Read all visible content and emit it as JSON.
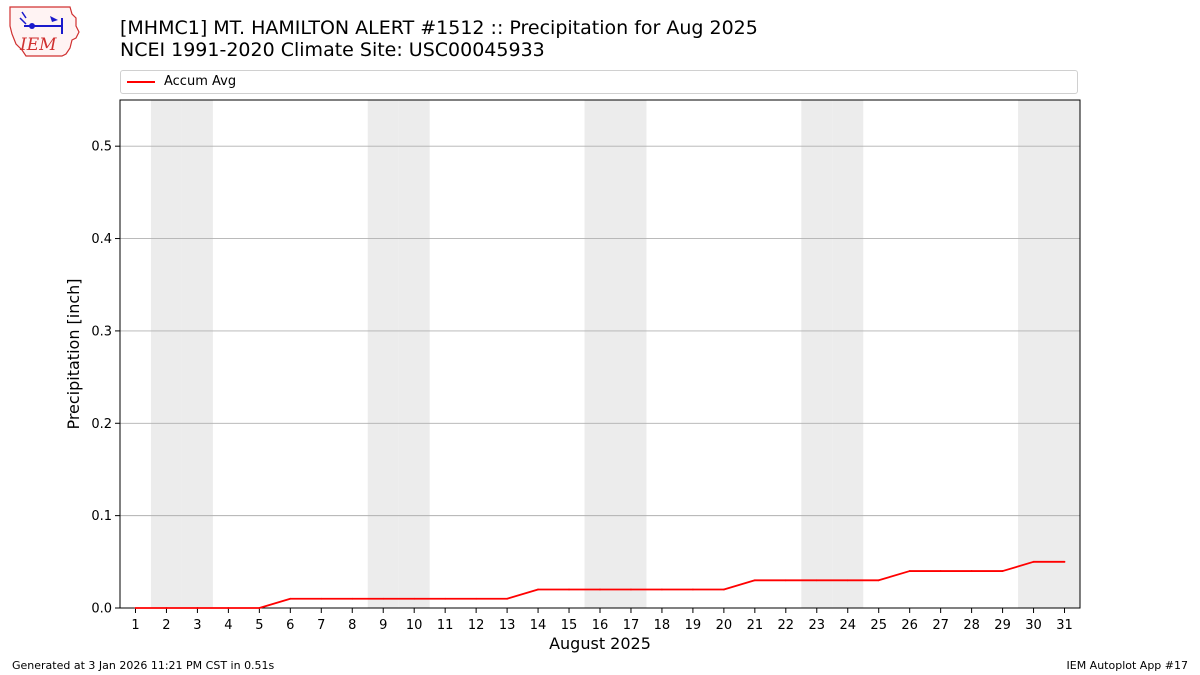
{
  "page": {
    "title_line1": "[MHMC1] MT. HAMILTON ALERT #1512 :: Precipitation for Aug 2025",
    "title_line2": "NCEI 1991-2020 Climate Site: USC00045933",
    "logo_text": "IEM",
    "footer_left": "Generated at 3 Jan 2026 11:21 PM CST in 0.51s",
    "footer_right": "IEM Autoplot App #17"
  },
  "chart_data": {
    "type": "line",
    "xlabel": "August 2025",
    "ylabel": "Precipitation [inch]",
    "ylim": [
      0,
      0.55
    ],
    "xlim": [
      0.5,
      31.5
    ],
    "yticks": [
      0.0,
      0.1,
      0.2,
      0.3,
      0.4,
      0.5
    ],
    "ytick_labels": [
      "0.0",
      "0.1",
      "0.2",
      "0.3",
      "0.4",
      "0.5"
    ],
    "x": [
      1,
      2,
      3,
      4,
      5,
      6,
      7,
      8,
      9,
      10,
      11,
      12,
      13,
      14,
      15,
      16,
      17,
      18,
      19,
      20,
      21,
      22,
      23,
      24,
      25,
      26,
      27,
      28,
      29,
      30,
      31
    ],
    "xtick_labels": [
      "1",
      "2",
      "3",
      "4",
      "5",
      "6",
      "7",
      "8",
      "9",
      "10",
      "11",
      "12",
      "13",
      "14",
      "15",
      "16",
      "17",
      "18",
      "19",
      "20",
      "21",
      "22",
      "23",
      "24",
      "25",
      "26",
      "27",
      "28",
      "29",
      "30",
      "31"
    ],
    "weekend_days": [
      2,
      3,
      9,
      10,
      16,
      17,
      23,
      24,
      30,
      31
    ],
    "series": [
      {
        "name": "Accum Avg",
        "color": "#ff0000",
        "values": [
          0,
          0,
          0,
          0,
          0,
          0.01,
          0.01,
          0.01,
          0.01,
          0.01,
          0.01,
          0.01,
          0.01,
          0.02,
          0.02,
          0.02,
          0.02,
          0.02,
          0.02,
          0.02,
          0.03,
          0.03,
          0.03,
          0.03,
          0.03,
          0.04,
          0.04,
          0.04,
          0.04,
          0.05,
          0.05
        ]
      }
    ],
    "grid": "horizontal",
    "legend": "top"
  },
  "colors": {
    "weekend_band": "#ececec",
    "grid": "#b0b0b0",
    "logo_red": "#d03030",
    "logo_blue": "#1a1acc"
  }
}
